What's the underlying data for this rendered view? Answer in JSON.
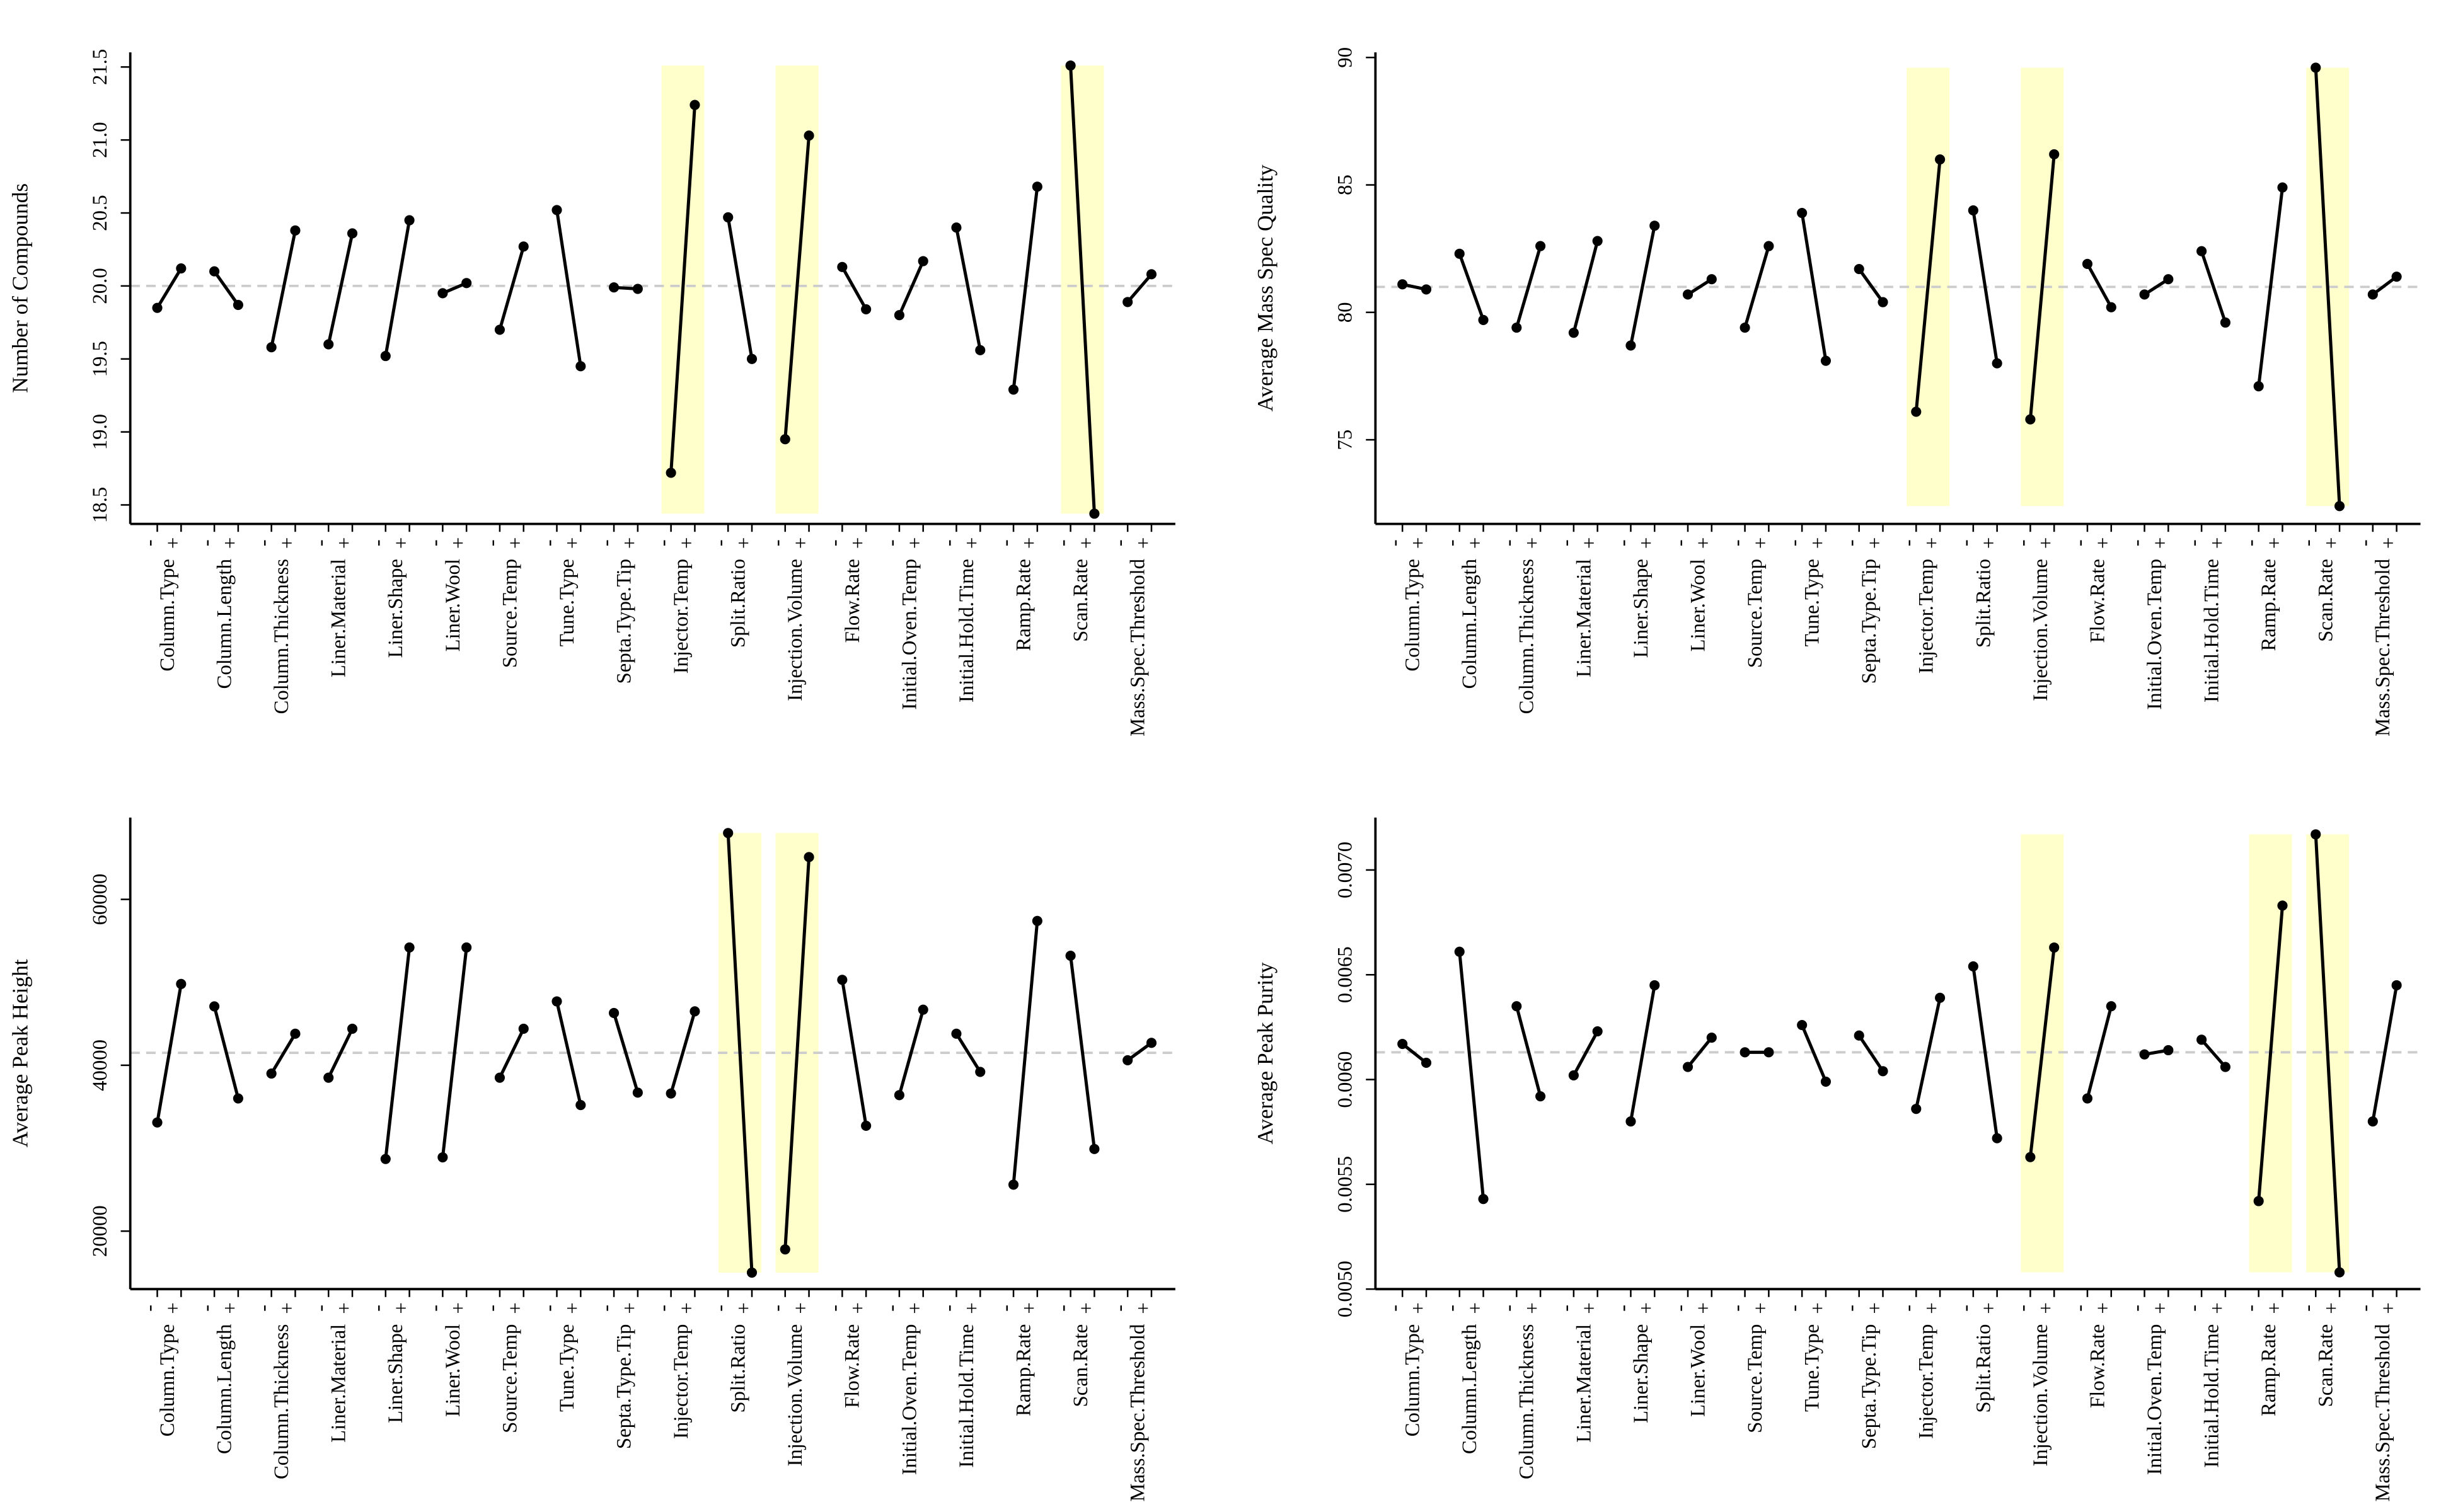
{
  "chart_data": [
    {
      "type": "line",
      "y_label": "Number of Compounds",
      "categories": [
        "Column.Type",
        "Column.Length",
        "Column.Thickness",
        "Liner.Material",
        "Liner.Shape",
        "Liner.Wool",
        "Source.Temp",
        "Tune.Type",
        "Septa.Type.Tip",
        "Injector.Temp",
        "Split.Ratio",
        "Injection.Volume",
        "Flow.Rate",
        "Initial.Oven.Temp",
        "Initial.Hold.Time",
        "Ramp.Rate",
        "Scan.Rate",
        "Mass.Spec.Threshold"
      ],
      "series": [
        {
          "name": "-",
          "color": "#000000",
          "values": [
            19.85,
            20.1,
            19.58,
            19.6,
            19.52,
            19.95,
            19.7,
            20.52,
            19.99,
            18.72,
            20.47,
            18.95,
            20.13,
            19.8,
            20.4,
            19.29,
            21.51,
            19.89
          ]
        },
        {
          "name": "+",
          "color": "#000000",
          "values": [
            20.12,
            19.87,
            20.38,
            20.36,
            20.45,
            20.02,
            20.27,
            19.45,
            19.98,
            21.24,
            19.5,
            21.03,
            19.84,
            20.17,
            19.56,
            20.68,
            18.44,
            20.08
          ]
        }
      ],
      "reference_line": 20.0,
      "highlight": [
        "Injector.Temp",
        "Injection.Volume",
        "Scan.Rate"
      ],
      "highlight_color": "#ffffcc",
      "ylim": [
        18.37,
        21.6
      ],
      "yticks": [
        18.5,
        {
          "value": 19,
          "label": "19.0"
        },
        19.5,
        {
          "value": 20,
          "label": "20.0"
        },
        20.5,
        {
          "value": 21,
          "label": "21.0"
        },
        21.5
      ]
    },
    {
      "type": "line",
      "y_label": "Average Mass Spec Quality",
      "categories": [
        "Column.Type",
        "Column.Length",
        "Column.Thickness",
        "Liner.Material",
        "Liner.Shape",
        "Liner.Wool",
        "Source.Temp",
        "Tune.Type",
        "Septa.Type.Tip",
        "Injector.Temp",
        "Split.Ratio",
        "Injection.Volume",
        "Flow.Rate",
        "Initial.Oven.Temp",
        "Initial.Hold.Time",
        "Ramp.Rate",
        "Scan.Rate",
        "Mass.Spec.Threshold"
      ],
      "series": [
        {
          "name": "-",
          "color": "#000000",
          "values": [
            81.1,
            82.3,
            79.4,
            79.2,
            78.7,
            80.7,
            79.4,
            83.9,
            81.7,
            76.1,
            84.0,
            75.8,
            81.9,
            80.7,
            82.4,
            77.1,
            89.6,
            80.7
          ]
        },
        {
          "name": "+",
          "color": "#000000",
          "values": [
            80.9,
            79.7,
            82.6,
            82.8,
            83.4,
            81.3,
            82.6,
            78.1,
            80.4,
            86.0,
            78.0,
            86.2,
            80.2,
            81.3,
            79.6,
            84.9,
            72.4,
            81.4
          ]
        }
      ],
      "reference_line": 81.0,
      "highlight": [
        "Injector.Temp",
        "Injection.Volume",
        "Scan.Rate"
      ],
      "highlight_color": "#ffffcc",
      "ylim": [
        71.7,
        90.2
      ],
      "yticks": [
        75,
        80,
        85,
        90
      ]
    },
    {
      "type": "line",
      "y_label": "Average Peak Height",
      "categories": [
        "Column.Type",
        "Column.Length",
        "Column.Thickness",
        "Liner.Material",
        "Liner.Shape",
        "Liner.Wool",
        "Source.Temp",
        "Tune.Type",
        "Septa.Type.Tip",
        "Injector.Temp",
        "Split.Ratio",
        "Injection.Volume",
        "Flow.Rate",
        "Initial.Oven.Temp",
        "Initial.Hold.Time",
        "Ramp.Rate",
        "Scan.Rate",
        "Mass.Spec.Threshold"
      ],
      "series": [
        {
          "name": "-",
          "color": "#000000",
          "values": [
            33100,
            47100,
            39000,
            38500,
            28700,
            28900,
            38500,
            47700,
            46300,
            36600,
            68000,
            17800,
            50300,
            36400,
            43800,
            25600,
            53200,
            40600
          ]
        },
        {
          "name": "+",
          "color": "#000000",
          "values": [
            49800,
            36000,
            43800,
            44400,
            54200,
            54200,
            44400,
            35200,
            36700,
            46500,
            15000,
            65100,
            32700,
            46700,
            39200,
            57400,
            29900,
            42700
          ]
        }
      ],
      "reference_line": 41500,
      "highlight": [
        "Split.Ratio",
        "Injection.Volume"
      ],
      "highlight_color": "#ffffcc",
      "ylim": [
        13010,
        69860
      ],
      "yticks": [
        20000,
        40000,
        60000
      ]
    },
    {
      "type": "line",
      "y_label": "Average Peak Purity",
      "categories": [
        "Column.Type",
        "Column.Length",
        "Column.Thickness",
        "Liner.Material",
        "Liner.Shape",
        "Liner.Wool",
        "Source.Temp",
        "Tune.Type",
        "Septa.Type.Tip",
        "Injector.Temp",
        "Split.Ratio",
        "Injection.Volume",
        "Flow.Rate",
        "Initial.Oven.Temp",
        "Initial.Hold.Time",
        "Ramp.Rate",
        "Scan.Rate",
        "Mass.Spec.Threshold"
      ],
      "series": [
        {
          "name": "-",
          "color": "#000000",
          "values": [
            0.00617,
            0.00661,
            0.00635,
            0.00602,
            0.0058,
            0.00606,
            0.00613,
            0.00626,
            0.00621,
            0.00586,
            0.00654,
            0.00563,
            0.00591,
            0.00612,
            0.00619,
            0.00542,
            0.00717,
            0.0058
          ]
        },
        {
          "name": "+",
          "color": "#000000",
          "values": [
            0.00608,
            0.00543,
            0.00592,
            0.00623,
            0.00645,
            0.0062,
            0.00613,
            0.00599,
            0.00604,
            0.00639,
            0.00572,
            0.00663,
            0.00635,
            0.00614,
            0.00606,
            0.00683,
            0.00508,
            0.00645
          ]
        }
      ],
      "reference_line": 0.00613,
      "highlight": [
        "Injection.Volume",
        "Ramp.Rate",
        "Scan.Rate"
      ],
      "highlight_color": "#ffffcc",
      "ylim": [
        0.005,
        0.00725
      ],
      "yticks": [
        {
          "value": 0.005,
          "label": "0.0050"
        },
        0.0055,
        {
          "value": 0.006,
          "label": "0.0060"
        },
        0.0065,
        {
          "value": 0.007,
          "label": "0.0070"
        }
      ]
    }
  ]
}
